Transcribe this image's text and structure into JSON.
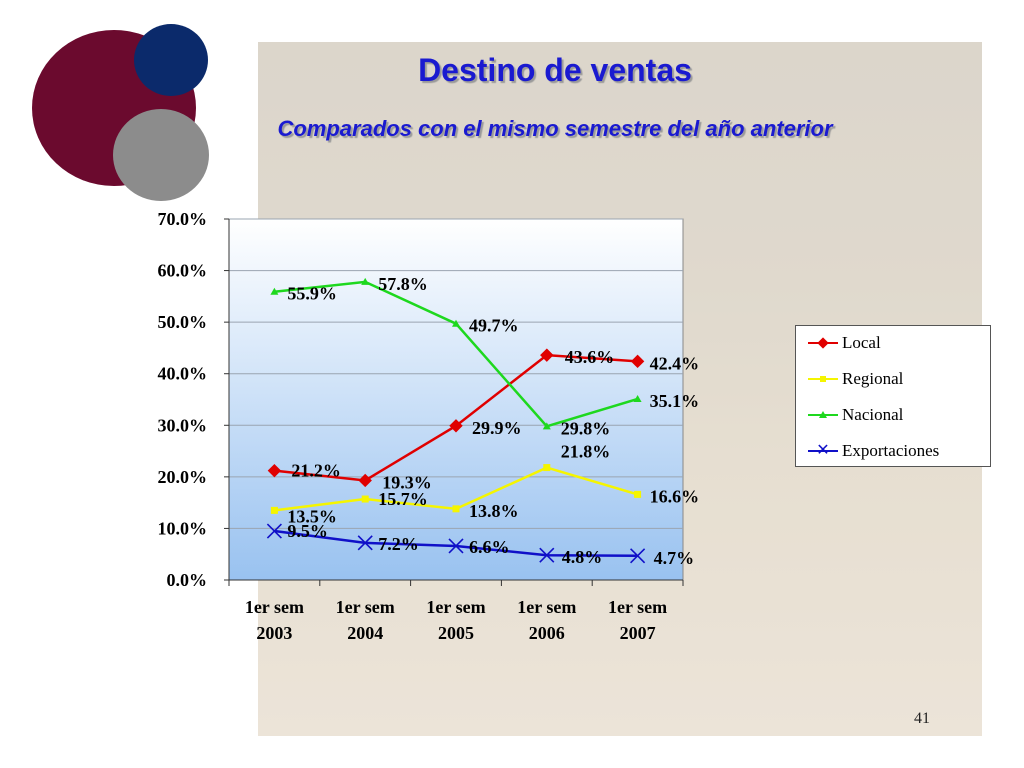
{
  "slide": {
    "title": "Destino de ventas",
    "subtitle": "Comparados con el mismo semestre del año anterior",
    "page_number": "41"
  },
  "colors": {
    "title": "#1a1ad0",
    "circle_maroon": "#6b0a2e",
    "circle_navy": "#0b2a6b",
    "circle_gray": "#8c8c8c",
    "plot_bg_top": "#ffffff",
    "plot_bg_bottom": "#99c2f0"
  },
  "chart_data": {
    "type": "line",
    "categories": [
      "1er sem 2003",
      "1er sem 2004",
      "1er sem 2005",
      "1er sem 2006",
      "1er sem 2007"
    ],
    "category_lines": [
      [
        "1er sem",
        "2003"
      ],
      [
        "1er sem",
        "2004"
      ],
      [
        "1er sem",
        "2005"
      ],
      [
        "1er sem",
        "2006"
      ],
      [
        "1er sem",
        "2007"
      ]
    ],
    "ylim": [
      0,
      70
    ],
    "yticks": [
      "0.0%",
      "10.0%",
      "20.0%",
      "30.0%",
      "40.0%",
      "50.0%",
      "60.0%",
      "70.0%"
    ],
    "grid": true,
    "legend_position": "right",
    "series": [
      {
        "name": "Local",
        "color": "#e00000",
        "marker": "diamond",
        "values": [
          21.2,
          19.3,
          29.9,
          43.6,
          42.4
        ],
        "labels": [
          "21.2%",
          "19.3%",
          "29.9%",
          "43.6%",
          "42.4%"
        ]
      },
      {
        "name": "Regional",
        "color": "#f5f500",
        "marker": "square",
        "values": [
          13.5,
          15.7,
          13.8,
          21.8,
          16.6
        ],
        "labels": [
          "13.5%",
          "15.7%",
          "13.8%",
          "21.8%",
          "16.6%"
        ]
      },
      {
        "name": "Nacional",
        "color": "#1ed81e",
        "marker": "triangle",
        "values": [
          55.9,
          57.8,
          49.7,
          29.8,
          35.1
        ],
        "labels": [
          "55.9%",
          "57.8%",
          "49.7%",
          "29.8%",
          "35.1%"
        ]
      },
      {
        "name": "Exportaciones",
        "color": "#1010c8",
        "marker": "x",
        "values": [
          9.5,
          7.2,
          6.6,
          4.8,
          4.7
        ],
        "labels": [
          "9.5%",
          "7.2%",
          "6.6%",
          "4.8%",
          "4.7%"
        ]
      }
    ]
  }
}
